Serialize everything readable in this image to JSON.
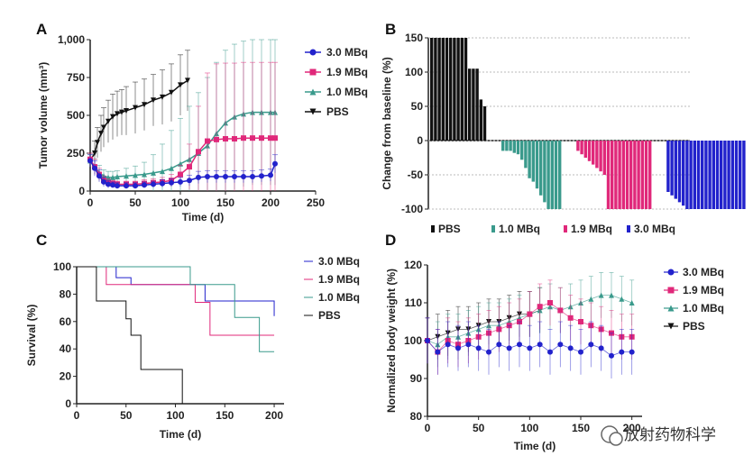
{
  "colors": {
    "mbq30": "#2222cc",
    "mbq19": "#e0287a",
    "mbq10": "#3a9a8c",
    "pbs": "#111111"
  },
  "watermark": "放射药物科学",
  "chart_data": [
    {
      "panel": "A",
      "type": "line",
      "xlabel": "Time (d)",
      "ylabel": "Tumor volume (mm³)",
      "xlim": [
        0,
        250
      ],
      "ylim": [
        0,
        1000
      ],
      "xticks": [
        "0",
        "50",
        "100",
        "150",
        "200",
        "250"
      ],
      "yticks": [
        "0",
        "250",
        "500",
        "750",
        "1,000"
      ],
      "legend_position": "top-right",
      "series": [
        {
          "name": "3.0 MBq",
          "color": "#2222cc",
          "marker": "circle",
          "x": [
            0,
            5,
            10,
            15,
            20,
            25,
            30,
            40,
            50,
            60,
            70,
            80,
            90,
            100,
            110,
            120,
            130,
            140,
            150,
            160,
            170,
            180,
            190,
            200,
            205
          ],
          "y": [
            200,
            150,
            100,
            60,
            45,
            40,
            35,
            35,
            35,
            40,
            45,
            50,
            55,
            60,
            70,
            90,
            95,
            95,
            95,
            95,
            95,
            95,
            100,
            105,
            180
          ],
          "err": [
            40,
            50,
            40,
            30,
            25,
            20,
            20,
            20,
            20,
            20,
            20,
            25,
            25,
            30,
            35,
            40,
            40,
            40,
            40,
            40,
            40,
            40,
            40,
            40,
            60
          ]
        },
        {
          "name": "1.9 MBq",
          "color": "#e0287a",
          "marker": "square",
          "x": [
            0,
            5,
            10,
            15,
            20,
            25,
            30,
            40,
            50,
            60,
            70,
            80,
            90,
            100,
            110,
            120,
            130,
            140,
            150,
            160,
            170,
            180,
            190,
            200,
            205
          ],
          "y": [
            210,
            160,
            110,
            70,
            55,
            50,
            45,
            45,
            45,
            50,
            55,
            60,
            70,
            110,
            160,
            260,
            330,
            340,
            345,
            345,
            350,
            350,
            350,
            350,
            350
          ],
          "err": [
            40,
            50,
            40,
            30,
            25,
            20,
            20,
            20,
            20,
            25,
            25,
            30,
            40,
            60,
            150,
            300,
            450,
            500,
            500,
            500,
            500,
            500,
            500,
            500,
            500
          ]
        },
        {
          "name": "1.0 MBq",
          "color": "#3a9a8c",
          "marker": "triangle",
          "x": [
            0,
            5,
            10,
            15,
            20,
            25,
            30,
            40,
            50,
            60,
            70,
            80,
            90,
            100,
            110,
            120,
            130,
            140,
            150,
            160,
            170,
            180,
            190,
            200,
            205
          ],
          "y": [
            200,
            160,
            120,
            100,
            90,
            90,
            95,
            100,
            105,
            110,
            120,
            130,
            150,
            180,
            210,
            250,
            300,
            380,
            450,
            490,
            510,
            520,
            520,
            520,
            520
          ],
          "err": [
            40,
            50,
            50,
            40,
            40,
            40,
            40,
            50,
            60,
            80,
            120,
            180,
            250,
            300,
            350,
            400,
            450,
            470,
            480,
            480,
            480,
            480,
            480,
            480,
            480
          ]
        },
        {
          "name": "PBS",
          "color": "#111111",
          "marker": "triangle-down",
          "x": [
            0,
            5,
            8,
            12,
            15,
            20,
            25,
            30,
            35,
            40,
            50,
            60,
            70,
            80,
            90,
            100,
            108
          ],
          "y": [
            200,
            250,
            320,
            380,
            420,
            460,
            490,
            510,
            520,
            530,
            550,
            570,
            600,
            620,
            650,
            700,
            730
          ],
          "err": [
            50,
            80,
            100,
            120,
            130,
            140,
            150,
            150,
            150,
            160,
            170,
            170,
            170,
            180,
            190,
            200,
            200
          ]
        }
      ]
    },
    {
      "panel": "B",
      "type": "bar",
      "ylabel": "Change from baseline (%)",
      "ylim": [
        -100,
        150
      ],
      "yticks": [
        "-100",
        "-50",
        "0",
        "50",
        "100",
        "150"
      ],
      "legend": [
        "PBS",
        "1.0 MBq",
        "1.9 MBq",
        "3.0 MBq"
      ],
      "series": [
        {
          "name": "PBS",
          "color": "#111111",
          "values": [
            150,
            150,
            150,
            150,
            150,
            150,
            150,
            150,
            150,
            150,
            105,
            105,
            105,
            60,
            50
          ]
        },
        {
          "name": "1.0 MBq",
          "color": "#3a9a8c",
          "values": [
            -15,
            -15,
            -15,
            -18,
            -20,
            -28,
            -40,
            -55,
            -60,
            -70,
            -80,
            -90,
            -100,
            -100,
            -100,
            -100
          ]
        },
        {
          "name": "1.9 MBq",
          "color": "#e0287a",
          "values": [
            -15,
            -20,
            -25,
            -30,
            -35,
            -40,
            -45,
            -50,
            -100,
            -100,
            -100,
            -100,
            -100,
            -100,
            -100,
            -100,
            -100,
            -100,
            -100,
            -100
          ]
        },
        {
          "name": "3.0 MBq",
          "color": "#2222cc",
          "values": [
            -75,
            -80,
            -85,
            -90,
            -95,
            -100,
            -100,
            -100,
            -100,
            -100,
            -100,
            -100,
            -100,
            -100,
            -100,
            -100,
            -100,
            -100,
            -100,
            -100,
            -100
          ]
        }
      ]
    },
    {
      "panel": "C",
      "type": "line",
      "xlabel": "Time (d)",
      "ylabel": "Survival (%)",
      "xlim": [
        0,
        210
      ],
      "ylim": [
        0,
        100
      ],
      "xticks": [
        "0",
        "50",
        "100",
        "150",
        "200"
      ],
      "yticks": [
        "0",
        "20",
        "40",
        "60",
        "80",
        "100"
      ],
      "legend_position": "top-right",
      "series": [
        {
          "name": "3.0 MBq",
          "color": "#2222cc",
          "x": [
            0,
            40,
            55,
            130,
            200
          ],
          "y": [
            100,
            92,
            87,
            75,
            64
          ]
        },
        {
          "name": "1.9 MBq",
          "color": "#e0287a",
          "x": [
            0,
            20,
            30,
            120,
            135,
            200
          ],
          "y": [
            100,
            100,
            87,
            74,
            50,
            50
          ]
        },
        {
          "name": "1.0 MBq",
          "color": "#3a9a8c",
          "x": [
            0,
            100,
            115,
            135,
            160,
            185,
            200
          ],
          "y": [
            100,
            100,
            87,
            87,
            63,
            38,
            38
          ]
        },
        {
          "name": "PBS",
          "color": "#111111",
          "x": [
            0,
            15,
            20,
            50,
            55,
            65,
            80,
            95,
            107
          ],
          "y": [
            100,
            100,
            75,
            62,
            50,
            25,
            25,
            25,
            0
          ]
        }
      ]
    },
    {
      "panel": "D",
      "type": "line",
      "xlabel": "Time (d)",
      "ylabel": "Normalized body weight (%)",
      "xlim": [
        0,
        210
      ],
      "ylim": [
        80,
        120
      ],
      "xticks": [
        "0",
        "50",
        "100",
        "150",
        "200"
      ],
      "yticks": [
        "80",
        "90",
        "100",
        "110",
        "120"
      ],
      "legend_position": "top-right",
      "series": [
        {
          "name": "3.0 MBq",
          "color": "#2222cc",
          "marker": "circle",
          "x": [
            0,
            10,
            20,
            30,
            40,
            50,
            60,
            70,
            80,
            90,
            100,
            110,
            120,
            130,
            140,
            150,
            160,
            170,
            180,
            190,
            200
          ],
          "y": [
            100,
            97,
            99,
            98,
            99,
            98,
            97,
            99,
            98,
            99,
            98,
            99,
            97,
            99,
            98,
            97,
            99,
            98,
            96,
            97,
            97
          ]
        },
        {
          "name": "1.9 MBq",
          "color": "#e0287a",
          "marker": "square",
          "x": [
            0,
            10,
            20,
            30,
            40,
            50,
            60,
            70,
            80,
            90,
            100,
            110,
            120,
            130,
            140,
            150,
            160,
            170,
            180,
            190,
            200
          ],
          "y": [
            100,
            97,
            100,
            99,
            100,
            101,
            102,
            103,
            104,
            105,
            107,
            109,
            110,
            108,
            106,
            105,
            104,
            103,
            102,
            101,
            101
          ]
        },
        {
          "name": "1.0 MBq",
          "color": "#3a9a8c",
          "marker": "triangle",
          "x": [
            0,
            10,
            20,
            30,
            40,
            50,
            60,
            70,
            80,
            90,
            100,
            110,
            120,
            130,
            140,
            150,
            160,
            170,
            180,
            190,
            200
          ],
          "y": [
            100,
            99,
            101,
            101,
            102,
            103,
            104,
            104,
            105,
            106,
            107,
            108,
            109,
            108,
            109,
            110,
            111,
            112,
            112,
            111,
            110
          ]
        },
        {
          "name": "PBS",
          "color": "#111111",
          "marker": "triangle-down",
          "x": [
            0,
            10,
            20,
            30,
            40,
            50,
            60,
            70,
            80,
            90,
            100,
            110
          ],
          "y": [
            100,
            101,
            102,
            103,
            103,
            104,
            105,
            105,
            106,
            107,
            107,
            108
          ]
        }
      ]
    }
  ]
}
